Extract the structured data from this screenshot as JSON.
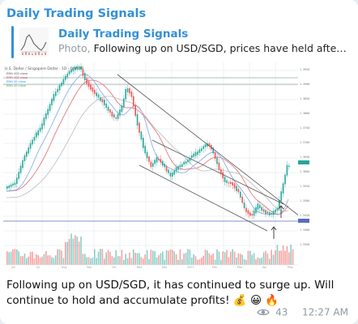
{
  "message": {
    "channel_name": "Daily Trading Signals",
    "reply": {
      "title": "Daily Trading Signals",
      "type_label": "Photo,",
      "preview_text": "Following up on USD/SGD, prices have held after t..."
    },
    "caption_text": "Following up on USD/SGD, it has continued to surge up. Will continue to hold and accumulate profits!",
    "caption_emoji": "💰 😀 🔥",
    "views": "43",
    "time": "12:27 AM",
    "icons": {
      "views": "eye-icon"
    }
  },
  "chart_image": {
    "title_line": "U.S. Dollar / Singapore Dollar · 1D · OANDA",
    "legend": [
      "EMA 200 close",
      "EMA 100 close",
      "EMA 50 close",
      "EMA 20 close"
    ],
    "colors": {
      "up": "#26a69a",
      "down": "#ef5350",
      "accent": "#3390d8"
    }
  }
}
